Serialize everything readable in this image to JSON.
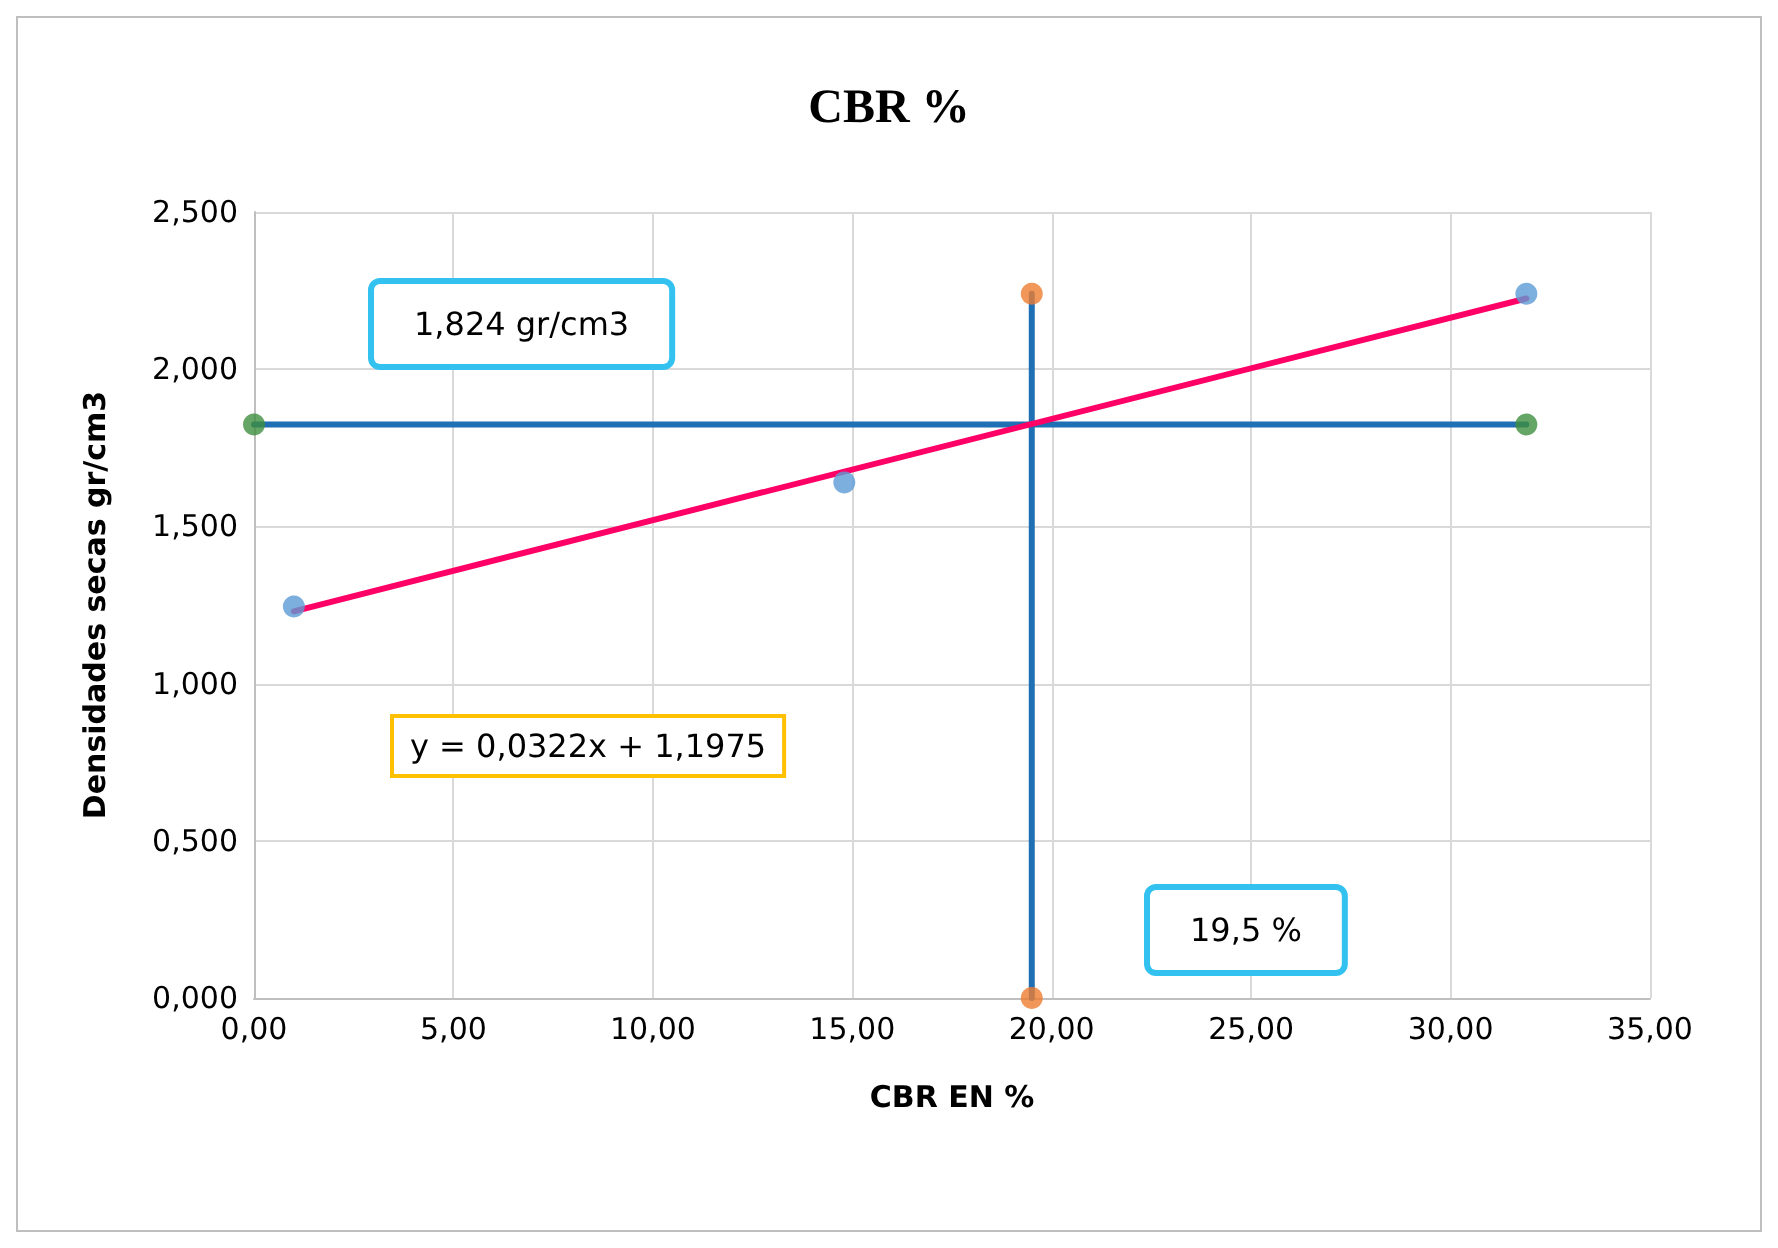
{
  "chart_data": {
    "type": "scatter",
    "title": "CBR %",
    "xlabel": "CBR EN %",
    "ylabel": "Densidades secas gr/cm3",
    "xlim": [
      0,
      35
    ],
    "xticks": [
      {
        "value": 0,
        "label": "0,00"
      },
      {
        "value": 5,
        "label": "5,00"
      },
      {
        "value": 10,
        "label": "10,00"
      },
      {
        "value": 15,
        "label": "15,00"
      },
      {
        "value": 20,
        "label": "20,00"
      },
      {
        "value": 25,
        "label": "25,00"
      },
      {
        "value": 30,
        "label": "30,00"
      },
      {
        "value": 35,
        "label": "35,00"
      }
    ],
    "ylim": [
      0,
      2.5
    ],
    "yticks": [
      {
        "value": 0,
        "label": "0,000"
      },
      {
        "value": 0.5,
        "label": "0,500"
      },
      {
        "value": 1,
        "label": "1,000"
      },
      {
        "value": 1.5,
        "label": "1,500"
      },
      {
        "value": 2,
        "label": "2,000"
      },
      {
        "value": 2.5,
        "label": "2,500"
      }
    ],
    "grid": true,
    "series": [
      {
        "color": "#5b9bd5",
        "marker": "circle",
        "x": [
          1,
          14.8,
          31.9
        ],
        "values": [
          1.245,
          1.64,
          2.24
        ]
      },
      {
        "type": "line",
        "color": "#1f6fb5",
        "marker": "none",
        "x": [
          0,
          31.9
        ],
        "values": [
          1.824,
          1.824
        ]
      },
      {
        "type": "line",
        "color": "#1f6fb5",
        "marker": "none",
        "x": [
          19.5,
          19.5
        ],
        "values": [
          0,
          2.24
        ]
      },
      {
        "color": "#3f8f3f",
        "marker": "circle",
        "x": [
          0,
          31.9
        ],
        "values": [
          1.824,
          1.824
        ]
      },
      {
        "color": "#ed7d31",
        "marker": "circle",
        "x": [
          19.5,
          19.5
        ],
        "values": [
          0,
          2.24
        ]
      },
      {
        "type": "line",
        "color": "#ff0066",
        "marker": "none",
        "x": [
          1,
          31.9
        ],
        "values": [
          1.23,
          2.225
        ]
      }
    ],
    "annotations": [
      "1,824 gr/cm3",
      "y = 0,0322x + 1,1975",
      "19,5 %"
    ]
  }
}
